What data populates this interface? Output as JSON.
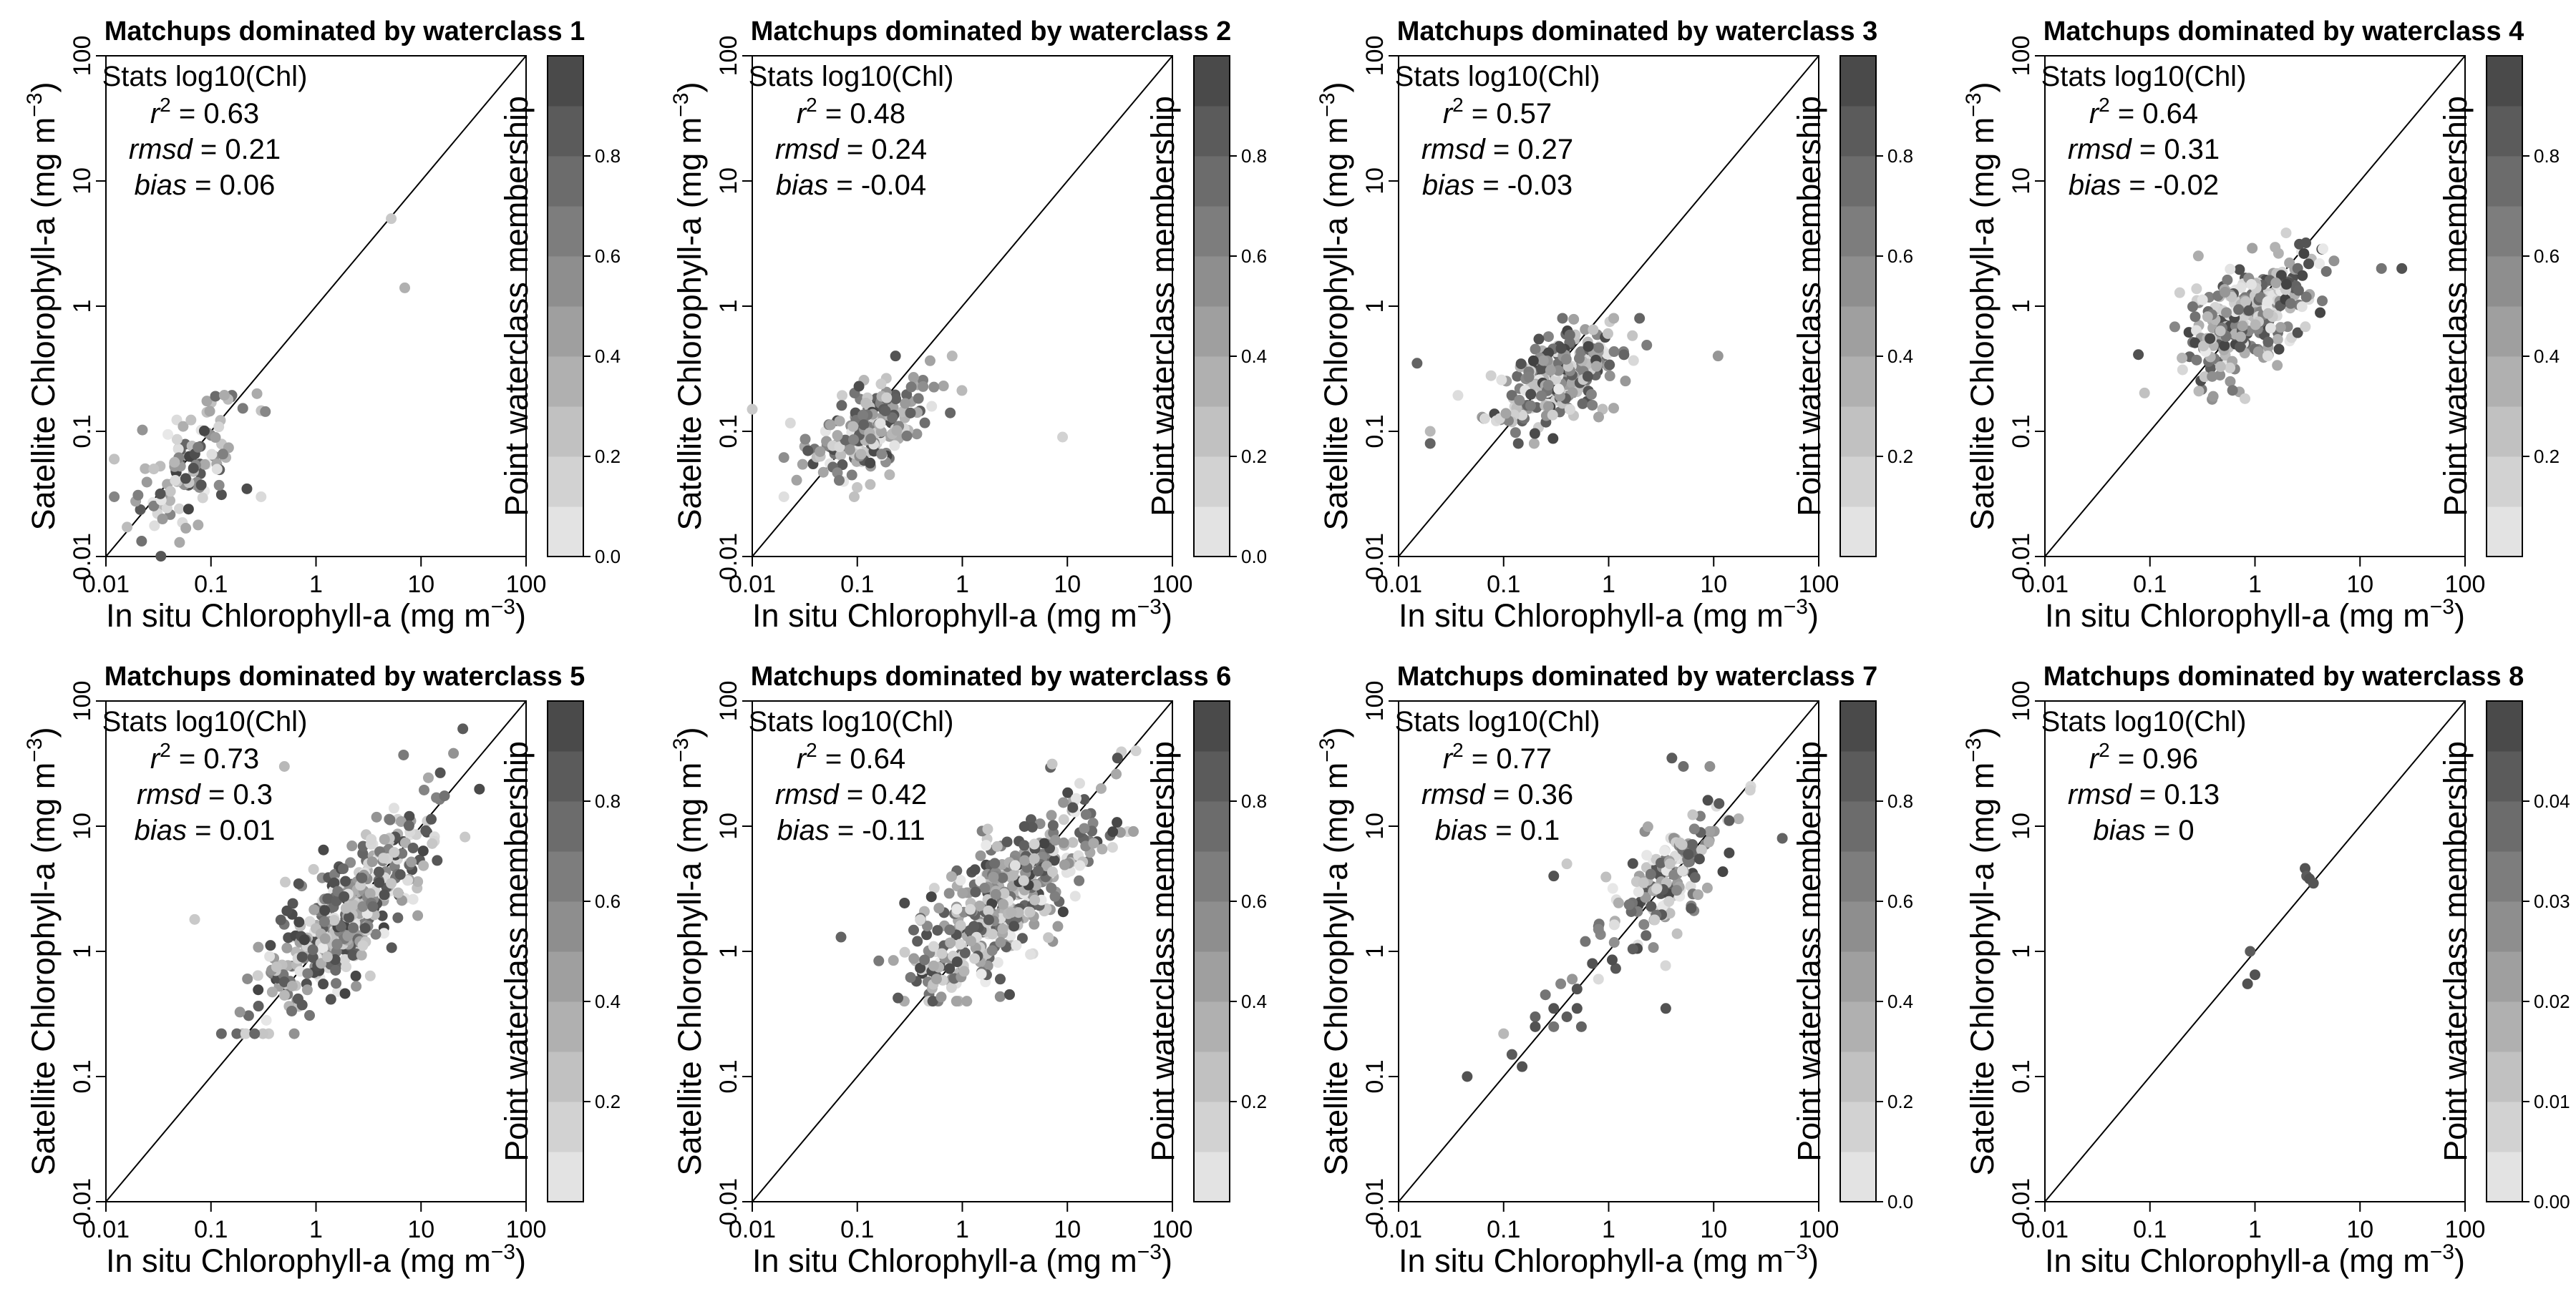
{
  "panel_common": {
    "xlabel": "In situ Chlorophyll-a (mg m",
    "ylabel": "Satellite Chlorophyll-a (mg m",
    "unit_exponent": "−3",
    "unit_close": ")",
    "colorbar_label": "Point waterclass membership",
    "stats_heading": "Stats log10(Chl)",
    "r2_symbol": "r",
    "r2_exponent": "2",
    "rmsd_symbol": "rmsd",
    "bias_symbol": "bias",
    "equals": " = ",
    "log_tick_labels": [
      "0.01",
      "0.1",
      "1",
      "10",
      "100"
    ]
  },
  "chart_data": [
    {
      "type": "scatter",
      "title": "Matchups dominated by waterclass 1",
      "xscale": "log",
      "yscale": "log",
      "xlim": [
        0.01,
        100
      ],
      "ylim": [
        0.01,
        100
      ],
      "one_to_one_line": true,
      "stats": {
        "r2": "0.63",
        "rmsd": "0.21",
        "bias": "0.06"
      },
      "colorbar": {
        "ticks": [
          "0.0",
          "0.2",
          "0.4",
          "0.6",
          "0.8"
        ],
        "range": [
          0,
          1
        ]
      },
      "cloud": {
        "cx": 0.06,
        "cy": 0.05,
        "sx": 0.28,
        "sy": 0.28,
        "n": 110,
        "corr": 0.6,
        "xmin": 0.01,
        "xmax": 0.35,
        "ymin": 0.006,
        "ymax": 0.2
      },
      "points": [
        [
          5.2,
          5.0,
          0.2
        ],
        [
          7.0,
          1.4,
          0.35
        ],
        [
          0.012,
          0.06,
          0.25
        ],
        [
          0.012,
          0.03,
          0.6
        ],
        [
          0.3,
          0.03,
          0.1
        ]
      ]
    },
    {
      "type": "scatter",
      "title": "Matchups dominated by waterclass 2",
      "xscale": "log",
      "yscale": "log",
      "xlim": [
        0.01,
        100
      ],
      "ylim": [
        0.01,
        100
      ],
      "one_to_one_line": true,
      "stats": {
        "r2": "0.48",
        "rmsd": "0.24",
        "bias": "-0.04"
      },
      "colorbar": {
        "ticks": [
          "0.0",
          "0.2",
          "0.4",
          "0.6",
          "0.8"
        ],
        "range": [
          0,
          1
        ]
      },
      "cloud": {
        "cx": 0.12,
        "cy": 0.1,
        "sx": 0.28,
        "sy": 0.22,
        "n": 200,
        "corr": 0.55,
        "xmin": 0.02,
        "xmax": 1.2,
        "ymin": 0.03,
        "ymax": 0.4
      },
      "points": [
        [
          9.0,
          0.09,
          0.15
        ],
        [
          0.01,
          0.15,
          0.2
        ],
        [
          0.8,
          0.4,
          0.3
        ]
      ]
    },
    {
      "type": "scatter",
      "title": "Matchups dominated by waterclass 3",
      "xscale": "log",
      "yscale": "log",
      "xlim": [
        0.01,
        100
      ],
      "ylim": [
        0.01,
        100
      ],
      "one_to_one_line": true,
      "stats": {
        "r2": "0.57",
        "rmsd": "0.27",
        "bias": "-0.03"
      },
      "colorbar": {
        "ticks": [
          "0.2",
          "0.4",
          "0.6",
          "0.8"
        ],
        "range": [
          0,
          1
        ]
      },
      "cloud": {
        "cx": 0.3,
        "cy": 0.27,
        "sx": 0.32,
        "sy": 0.2,
        "n": 260,
        "corr": 0.55,
        "xmin": 0.02,
        "xmax": 3,
        "ymin": 0.08,
        "ymax": 0.8
      },
      "points": [
        [
          11.0,
          0.4,
          0.5
        ],
        [
          0.015,
          0.35,
          0.8
        ],
        [
          0.02,
          0.1,
          0.3
        ]
      ]
    },
    {
      "type": "scatter",
      "title": "Matchups dominated by waterclass 4",
      "xscale": "log",
      "yscale": "log",
      "xlim": [
        0.01,
        100
      ],
      "ylim": [
        0.01,
        100
      ],
      "one_to_one_line": true,
      "stats": {
        "r2": "0.64",
        "rmsd": "0.31",
        "bias": "-0.02"
      },
      "colorbar": {
        "ticks": [
          "0.2",
          "0.4",
          "0.6",
          "0.8"
        ],
        "range": [
          0,
          1
        ]
      },
      "cloud": {
        "cx": 0.9,
        "cy": 0.85,
        "sx": 0.32,
        "sy": 0.25,
        "n": 300,
        "corr": 0.6,
        "xmin": 0.05,
        "xmax": 20,
        "ymin": 0.18,
        "ymax": 4
      },
      "points": [
        [
          25.0,
          2.0,
          0.9
        ],
        [
          16.0,
          2.0,
          0.7
        ]
      ]
    },
    {
      "type": "scatter",
      "title": "Matchups dominated by waterclass 5",
      "xscale": "log",
      "yscale": "log",
      "xlim": [
        0.01,
        100
      ],
      "ylim": [
        0.01,
        100
      ],
      "one_to_one_line": true,
      "stats": {
        "r2": "0.73",
        "rmsd": "0.3",
        "bias": "0.01"
      },
      "colorbar": {
        "ticks": [
          "0.2",
          "0.4",
          "0.6",
          "0.8"
        ],
        "range": [
          0,
          1
        ]
      },
      "cloud": {
        "cx": 2.0,
        "cy": 2.0,
        "sx": 0.4,
        "sy": 0.4,
        "n": 420,
        "corr": 0.78,
        "xmin": 0.07,
        "xmax": 40,
        "ymin": 0.22,
        "ymax": 60
      },
      "points": [
        [
          25.0,
          60.0,
          0.85
        ],
        [
          0.5,
          30.0,
          0.3
        ],
        [
          0.07,
          1.8,
          0.2
        ]
      ]
    },
    {
      "type": "scatter",
      "title": "Matchups dominated by waterclass 6",
      "xscale": "log",
      "yscale": "log",
      "xlim": [
        0.01,
        100
      ],
      "ylim": [
        0.01,
        100
      ],
      "one_to_one_line": true,
      "stats": {
        "r2": "0.64",
        "rmsd": "0.42",
        "bias": "-0.11"
      },
      "colorbar": {
        "ticks": [
          "0.2",
          "0.4",
          "0.6",
          "0.8"
        ],
        "range": [
          0,
          1
        ]
      },
      "cloud": {
        "cx": 2.5,
        "cy": 2.5,
        "sx": 0.45,
        "sy": 0.4,
        "n": 420,
        "corr": 0.72,
        "xmin": 0.07,
        "xmax": 45,
        "ymin": 0.4,
        "ymax": 40
      },
      "points": [
        [
          0.07,
          1.3,
          0.8
        ],
        [
          30.0,
          35.0,
          0.9
        ]
      ]
    },
    {
      "type": "scatter",
      "title": "Matchups dominated by waterclass 7",
      "xscale": "log",
      "yscale": "log",
      "xlim": [
        0.01,
        100
      ],
      "ylim": [
        0.01,
        100
      ],
      "one_to_one_line": true,
      "stats": {
        "r2": "0.77",
        "rmsd": "0.36",
        "bias": "0.1"
      },
      "colorbar": {
        "ticks": [
          "0.0",
          "0.2",
          "0.4",
          "0.6",
          "0.8"
        ],
        "range": [
          0,
          1
        ]
      },
      "cloud": {
        "cx": 4.0,
        "cy": 4.0,
        "sx": 0.3,
        "sy": 0.3,
        "n": 150,
        "corr": 0.65,
        "xmin": 0.8,
        "xmax": 40,
        "ymin": 0.6,
        "ymax": 30
      },
      "points": [
        [
          0.045,
          0.1,
          0.9
        ],
        [
          0.1,
          0.22,
          0.3
        ],
        [
          0.12,
          0.15,
          0.85
        ],
        [
          0.15,
          0.12,
          0.9
        ],
        [
          0.2,
          0.3,
          0.8
        ],
        [
          0.25,
          0.45,
          0.7
        ],
        [
          0.3,
          0.35,
          0.9
        ],
        [
          0.35,
          0.55,
          0.6
        ],
        [
          0.4,
          0.3,
          0.85
        ],
        [
          0.45,
          0.6,
          0.5
        ],
        [
          0.5,
          0.5,
          0.9
        ],
        [
          0.55,
          0.25,
          0.8
        ],
        [
          0.6,
          1.2,
          0.7
        ],
        [
          0.7,
          0.8,
          0.9
        ],
        [
          0.8,
          1.5,
          0.6
        ],
        [
          0.3,
          4.0,
          0.9
        ],
        [
          0.4,
          5.0,
          0.2
        ],
        [
          0.2,
          0.25,
          0.9
        ],
        [
          0.5,
          0.35,
          0.9
        ],
        [
          0.3,
          0.25,
          0.7
        ],
        [
          4.0,
          35.0,
          0.85
        ],
        [
          3.5,
          0.35,
          0.9
        ],
        [
          45.0,
          8.0,
          0.8
        ]
      ]
    },
    {
      "type": "scatter",
      "title": "Matchups dominated by waterclass 8",
      "xscale": "log",
      "yscale": "log",
      "xlim": [
        0.01,
        100
      ],
      "ylim": [
        0.01,
        100
      ],
      "one_to_one_line": true,
      "stats": {
        "r2": "0.96",
        "rmsd": "0.13",
        "bias": "0"
      },
      "colorbar": {
        "ticks": [
          "0.00",
          "0.01",
          "0.02",
          "0.03",
          "0.04"
        ],
        "range": [
          0,
          0.05
        ]
      },
      "points": [
        [
          0.85,
          0.55,
          0.9
        ],
        [
          0.9,
          1.0,
          0.85
        ],
        [
          1.0,
          0.65,
          0.9
        ],
        [
          3.0,
          4.6,
          0.9
        ],
        [
          3.1,
          4.0,
          0.85
        ],
        [
          3.3,
          3.8,
          0.9
        ],
        [
          3.6,
          3.5,
          0.88
        ]
      ]
    }
  ]
}
